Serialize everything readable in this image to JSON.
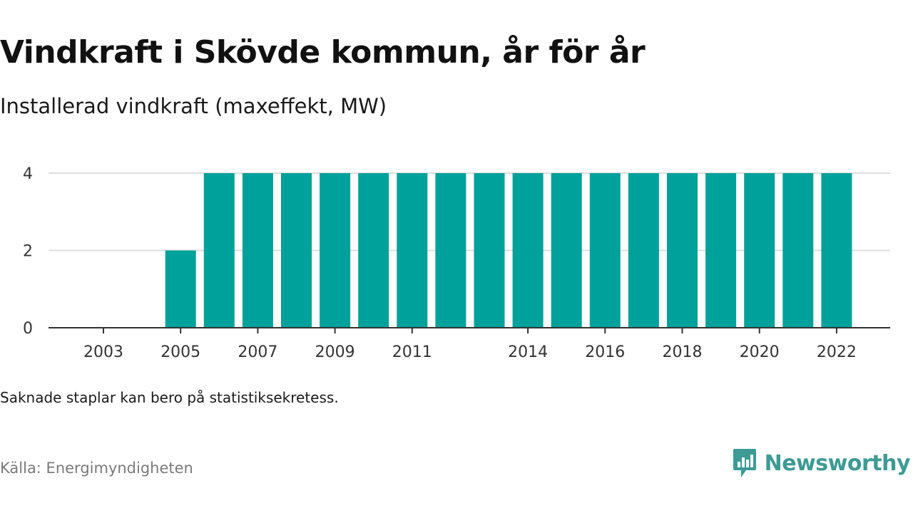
{
  "title": "Vindkraft i Skövde kommun, år för år",
  "subtitle": "Installerad vindkraft (maxeffekt, MW)",
  "note": "Saknade staplar kan bero på statistiksekretess.",
  "source": "Källa: Energimyndigheten",
  "brand": {
    "name": "Newsworthy",
    "icon": "newsworthy-logo-icon",
    "color": "#3d9a94"
  },
  "chart_data": {
    "type": "bar",
    "title": "Vindkraft i Skövde kommun, år för år",
    "subtitle": "Installerad vindkraft (maxeffekt, MW)",
    "xlabel": "",
    "ylabel": "",
    "categories": [
      2002,
      2003,
      2004,
      2005,
      2006,
      2007,
      2008,
      2009,
      2010,
      2011,
      2012,
      2013,
      2014,
      2015,
      2016,
      2017,
      2018,
      2019,
      2020,
      2021,
      2022
    ],
    "values": [
      null,
      null,
      null,
      2,
      4,
      4,
      4,
      4,
      4,
      4,
      4,
      4,
      4,
      4,
      4,
      4,
      4,
      4,
      4,
      4,
      4
    ],
    "x_tick_labels": [
      "2003",
      "2005",
      "2007",
      "2009",
      "2011",
      "2014",
      "2016",
      "2018",
      "2020",
      "2022"
    ],
    "y_ticks": [
      0,
      2,
      4
    ],
    "ylim": [
      0,
      4
    ],
    "grid": true,
    "bar_color": "#00a19a",
    "grid_color": "#dddddd",
    "axis_color": "#333333"
  }
}
